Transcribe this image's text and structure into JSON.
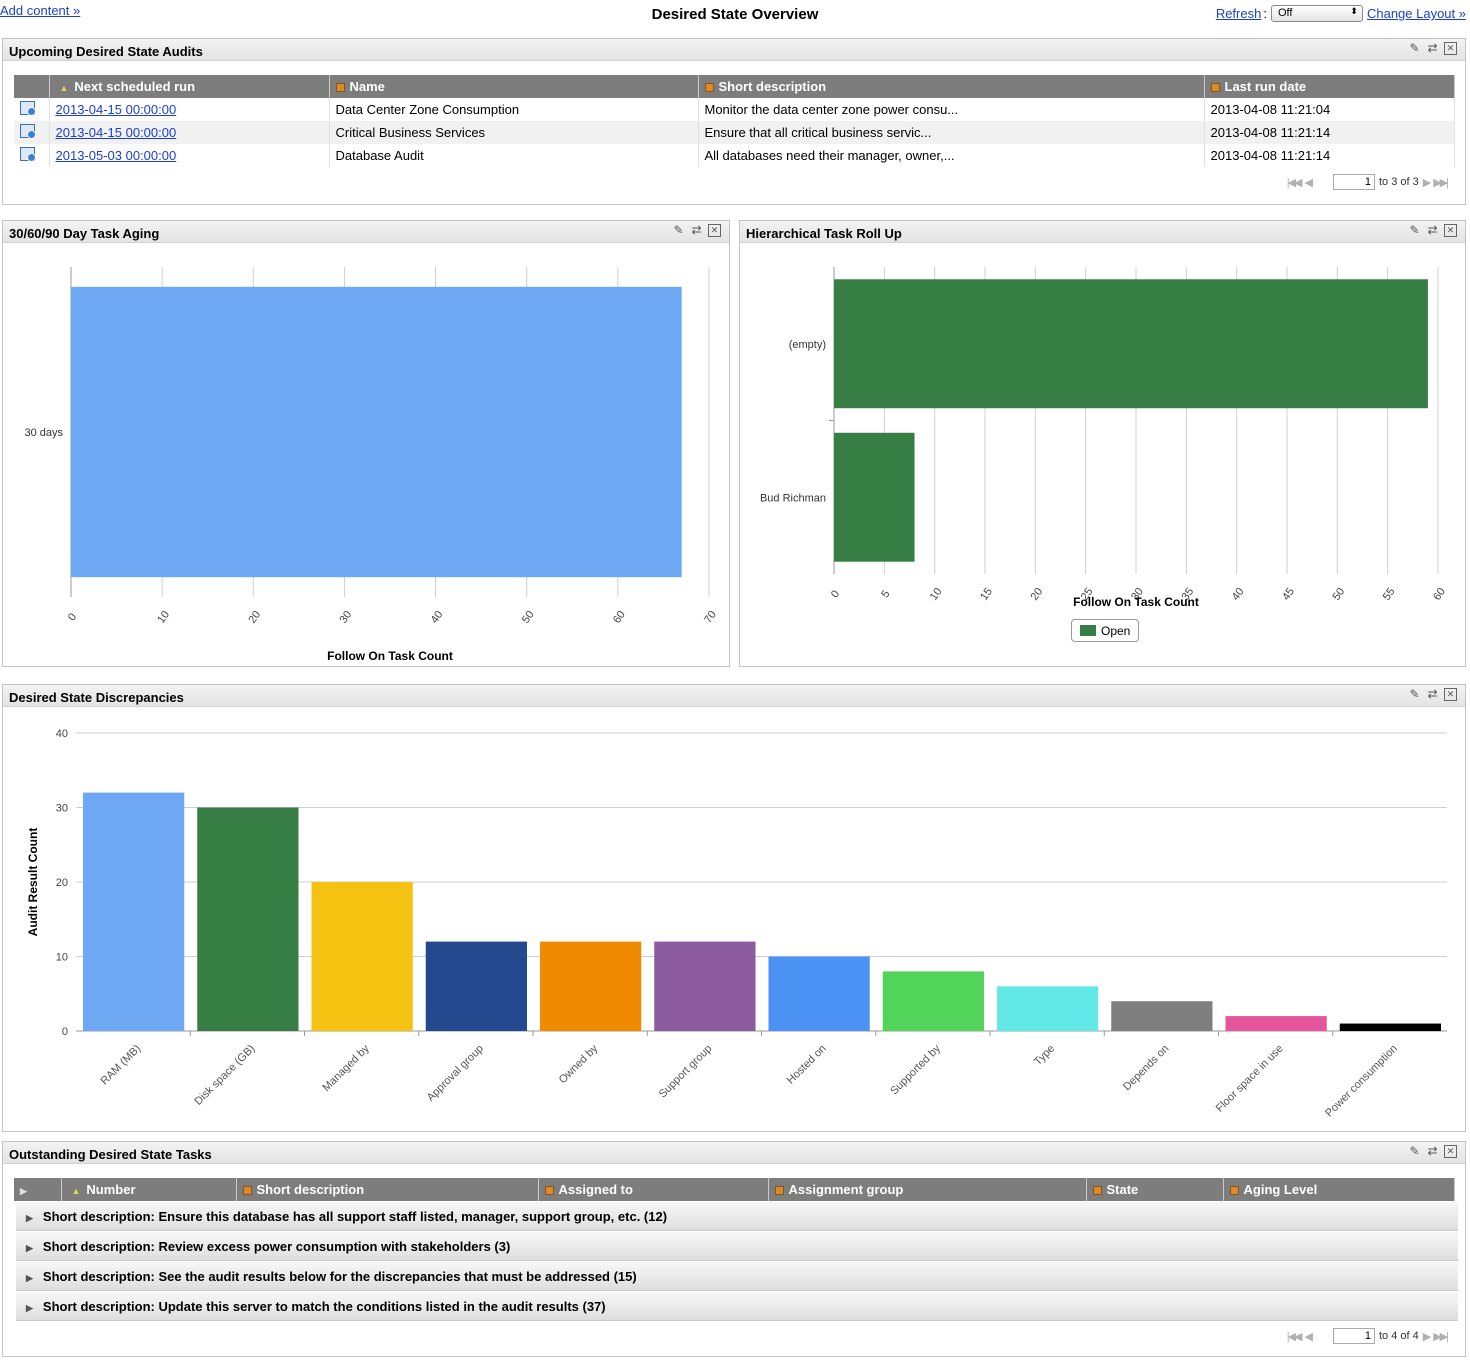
{
  "topbar": {
    "add_content": "Add content »",
    "title": "Desired State Overview",
    "refresh_label": "Refresh",
    "refresh_value": "Off",
    "change_layout": "Change Layout »"
  },
  "audits": {
    "title": "Upcoming Desired State Audits",
    "columns": [
      "Next scheduled run",
      "Name",
      "Short description",
      "Last run date"
    ],
    "rows": [
      {
        "next": "2013-04-15 00:00:00",
        "name": "Data Center Zone Consumption",
        "desc": "Monitor the data center zone power consu...",
        "last": "2013-04-08 11:21:04"
      },
      {
        "next": "2013-04-15 00:00:00",
        "name": "Critical Business Services",
        "desc": "Ensure that all critical business servic...",
        "last": "2013-04-08 11:21:14"
      },
      {
        "next": "2013-05-03 00:00:00",
        "name": "Database Audit",
        "desc": "All databases need their manager, owner,...",
        "last": "2013-04-08 11:21:14"
      }
    ],
    "pager": {
      "page": "1",
      "of_text": "to 3 of 3"
    }
  },
  "aging": {
    "title": "30/60/90 Day Task Aging"
  },
  "rollup": {
    "title": "Hierarchical Task Roll Up"
  },
  "discrepancies": {
    "title": "Desired State Discrepancies"
  },
  "tasks": {
    "title": "Outstanding Desired State Tasks",
    "columns": [
      "Number",
      "Short description",
      "Assigned to",
      "Assignment group",
      "State",
      "Aging Level"
    ],
    "groups": [
      "Short description: Ensure this database has all support staff listed, manager, support group, etc. (12)",
      "Short description: Review excess power consumption with stakeholders (3)",
      "Short description: See the audit results below for the discrepancies that must be addressed (15)",
      "Short description: Update this server to match the conditions listed in the audit results (37)"
    ],
    "pager": {
      "page": "1",
      "of_text": "to 4 of 4"
    }
  },
  "icons": {
    "edit": "pencil-icon",
    "refresh": "refresh-icon",
    "close": "close-icon",
    "row": "audit-row-icon",
    "expand": "expand-triangle-icon",
    "sort": "sort-ascending-icon",
    "column": "column-config-icon"
  },
  "chart_data": [
    {
      "type": "bar",
      "orientation": "horizontal",
      "categories": [
        "30 days"
      ],
      "values": [
        67
      ],
      "xlabel": "Follow On Task Count",
      "xlim": [
        0,
        70
      ],
      "xticks": [
        0,
        10,
        20,
        30,
        40,
        50,
        60,
        70
      ],
      "color": "#6fa8f2",
      "grid": true
    },
    {
      "type": "bar",
      "orientation": "horizontal",
      "categories": [
        "(empty)",
        "Bud Richman"
      ],
      "series": [
        {
          "name": "Open",
          "values": [
            59,
            8
          ]
        }
      ],
      "xlabel": "Follow On Task Count",
      "xlim": [
        0,
        60
      ],
      "xticks": [
        0,
        5,
        10,
        15,
        20,
        25,
        30,
        35,
        40,
        45,
        50,
        55,
        60
      ],
      "color": "#377e45",
      "legend": "bottom-center",
      "grid": true
    },
    {
      "type": "bar",
      "orientation": "vertical",
      "categories": [
        "RAM (MB)",
        "Disk space (GB)",
        "Managed by",
        "Approval group",
        "Owned by",
        "Support group",
        "Hosted on",
        "Supported by",
        "Type",
        "Depends on",
        "Floor space in use",
        "Power consumption"
      ],
      "values": [
        32,
        30,
        20,
        12,
        12,
        12,
        10,
        8,
        6,
        4,
        2,
        1
      ],
      "colors": [
        "#6fa8f2",
        "#377e45",
        "#f5c211",
        "#24498f",
        "#f08a00",
        "#8c5a9e",
        "#4c92f5",
        "#52d35a",
        "#63e8e8",
        "#7f7f7f",
        "#e4559b",
        "#000000"
      ],
      "ylabel": "Audit Result Count",
      "ylim": [
        0,
        40
      ],
      "yticks": [
        0,
        10,
        20,
        30,
        40
      ],
      "grid": true
    }
  ]
}
